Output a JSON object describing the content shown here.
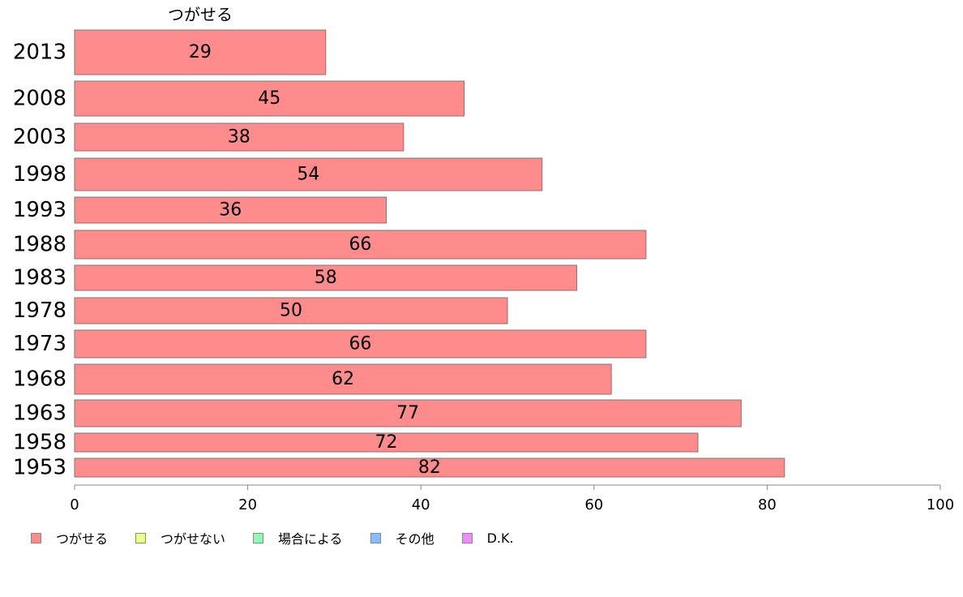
{
  "chart_data": {
    "type": "bar",
    "orientation": "horizontal",
    "series_label": "つがせる",
    "categories": [
      "2013",
      "2008",
      "2003",
      "1998",
      "1993",
      "1988",
      "1983",
      "1978",
      "1973",
      "1968",
      "1963",
      "1958",
      "1953"
    ],
    "values": [
      29,
      45,
      38,
      54,
      36,
      66,
      58,
      50,
      66,
      62,
      77,
      72,
      82
    ],
    "data_labels": [
      "29",
      "45",
      "38",
      "54",
      "36",
      "66",
      "58",
      "50",
      "66",
      "62",
      "77",
      "72",
      "82"
    ],
    "xlim": [
      0,
      100
    ],
    "x_ticks": [
      0,
      20,
      40,
      60,
      80,
      100
    ],
    "grid": false,
    "legend_position": "bottom-left",
    "bar_color": "#ff8c8c",
    "legend": [
      {
        "label": "つがせる",
        "color": "#ff8c8c"
      },
      {
        "label": "つがせない",
        "color": "#eaff8c"
      },
      {
        "label": "場合による",
        "color": "#8cffb4"
      },
      {
        "label": "その他",
        "color": "#8cbcff"
      },
      {
        "label": "D.K.",
        "color": "#f08cff"
      }
    ]
  }
}
